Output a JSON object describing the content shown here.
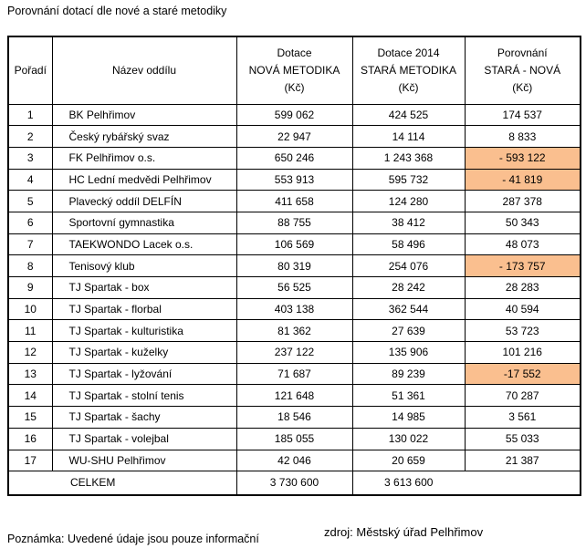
{
  "title": "Porovnání dotací dle nové a staré metodiky",
  "colors": {
    "highlight": "#FABF8F",
    "border": "#000000",
    "text": "#000000",
    "background": "#FFFFFF"
  },
  "table": {
    "headers": {
      "rank": "Pořadí",
      "name": "Název oddílu",
      "new_method": [
        "Dotace",
        "NOVÁ METODIKA",
        "(Kč)"
      ],
      "old_method": [
        "Dotace 2014",
        "STARÁ METODIKA",
        "(Kč)"
      ],
      "comparison": [
        "Porovnání",
        "STARÁ - NOVÁ",
        "(Kč)"
      ]
    },
    "rows": [
      {
        "rank": "1",
        "name": "BK Pelhřimov",
        "new": "599 062",
        "old": "424 525",
        "diff": "174 537",
        "highlight": false
      },
      {
        "rank": "2",
        "name": "Český rybářský svaz",
        "new": "22 947",
        "old": "14 114",
        "diff": "8 833",
        "highlight": false
      },
      {
        "rank": "3",
        "name": "FK Pelhřimov o.s.",
        "new": "650 246",
        "old": "1 243 368",
        "diff": "- 593 122",
        "highlight": true
      },
      {
        "rank": "4",
        "name": "HC Lední medvědi Pelhřimov",
        "new": "553 913",
        "old": "595 732",
        "diff": "- 41 819",
        "highlight": true
      },
      {
        "rank": "5",
        "name": "Plavecký oddíl DELFÍN",
        "new": "411 658",
        "old": "124 280",
        "diff": "287 378",
        "highlight": false
      },
      {
        "rank": "6",
        "name": "Sportovní gymnastika",
        "new": "88 755",
        "old": "38 412",
        "diff": "50 343",
        "highlight": false
      },
      {
        "rank": "7",
        "name": "TAEKWONDO Lacek o.s.",
        "new": "106 569",
        "old": "58 496",
        "diff": "48 073",
        "highlight": false
      },
      {
        "rank": "8",
        "name": "Tenisový klub",
        "new": "80 319",
        "old": "254 076",
        "diff": "- 173 757",
        "highlight": true
      },
      {
        "rank": "9",
        "name": "TJ Spartak - box",
        "new": "56 525",
        "old": "28 242",
        "diff": "28 283",
        "highlight": false
      },
      {
        "rank": "10",
        "name": "TJ Spartak - florbal",
        "new": "403 138",
        "old": "362 544",
        "diff": "40 594",
        "highlight": false
      },
      {
        "rank": "11",
        "name": "TJ Spartak - kulturistika",
        "new": "81 362",
        "old": "27 639",
        "diff": "53 723",
        "highlight": false
      },
      {
        "rank": "12",
        "name": "TJ Spartak - kuželky",
        "new": "237 122",
        "old": "135 906",
        "diff": "101 216",
        "highlight": false
      },
      {
        "rank": "13",
        "name": "TJ Spartak - lyžování",
        "new": "71 687",
        "old": "89 239",
        "diff": "-17 552",
        "highlight": true
      },
      {
        "rank": "14",
        "name": "TJ Spartak - stolní tenis",
        "new": "121 648",
        "old": "51 361",
        "diff": "70 287",
        "highlight": false
      },
      {
        "rank": "15",
        "name": "TJ Spartak - šachy",
        "new": "18 546",
        "old": "14 985",
        "diff": "3 561",
        "highlight": false
      },
      {
        "rank": "16",
        "name": "TJ Spartak - volejbal",
        "new": "185 055",
        "old": "130 022",
        "diff": "55 033",
        "highlight": false
      },
      {
        "rank": "17",
        "name": "WU-SHU Pelhřimov",
        "new": "42 046",
        "old": "20 659",
        "diff": "21 387",
        "highlight": false
      }
    ],
    "total": {
      "label": "CELKEM",
      "new": "3 730 600",
      "old": "3 613 600",
      "diff": ""
    }
  },
  "footer": {
    "note": "Poznámka: Uvedené údaje jsou pouze informační",
    "source": "zdroj: Městský úřad Pelhřimov"
  }
}
